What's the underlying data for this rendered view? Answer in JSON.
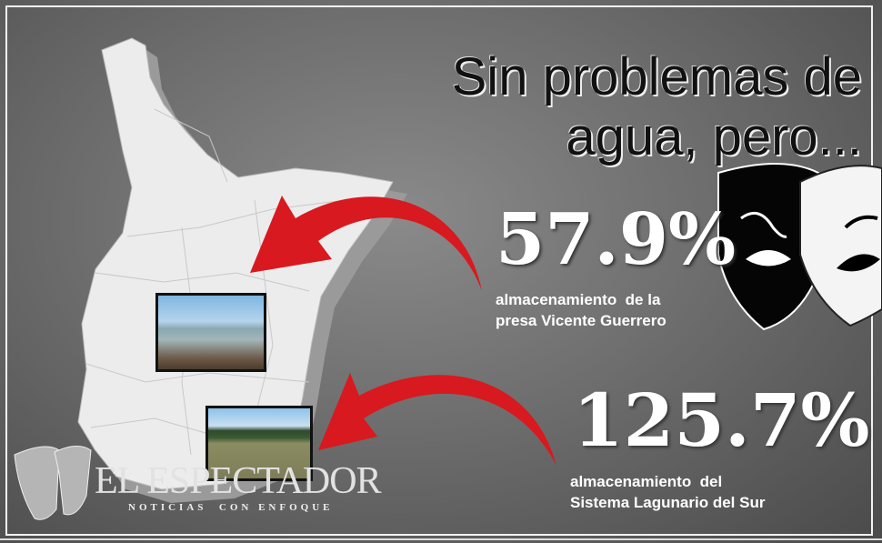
{
  "headline": {
    "line1": "Sin problemas de",
    "line2": "agua, pero..."
  },
  "stats": [
    {
      "value": "57.9%",
      "caption_line1": "almacenamiento  de la",
      "caption_line2": "presa Vicente Guerrero"
    },
    {
      "value": "125.7%",
      "caption_line1": "almacenamiento  del",
      "caption_line2": "Sistema Lagunario del Sur"
    }
  ],
  "logo": {
    "name": "EL ESPECTADOR",
    "tagline": "NOTICIAS  CON ENFOQUE"
  },
  "colors": {
    "arrow": "#d8191f",
    "map": "#ececec",
    "background": "#6e6e6e"
  },
  "icons": [
    "theater-mask-icon",
    "red-arrow-icon",
    "map-tamaulipas"
  ]
}
